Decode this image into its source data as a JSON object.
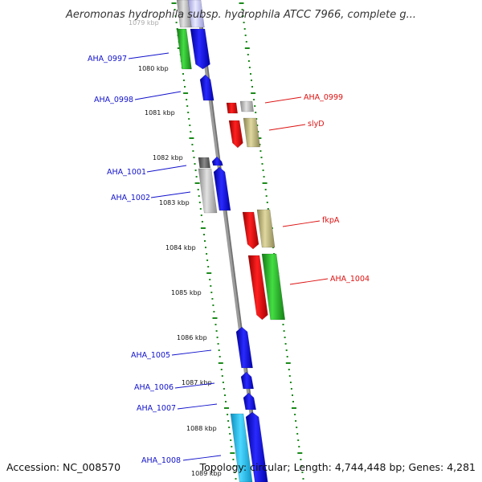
{
  "title": "Aeromonas hydrophila subsp. hydrophila ATCC 7966, complete g...",
  "footer": {
    "accession": "Accession: NC_008570",
    "topology": "Topology: circular; Length: 4,744,448 bp; Genes: 4,281"
  },
  "colors": {
    "forward_label": "#1111cc",
    "reverse_label": "#dd1111",
    "tick_dots": "#1a8a1a",
    "backbone": "#999999"
  },
  "position_labels": [
    "1079 kbp",
    "1080 kbp",
    "1081 kbp",
    "1082 kbp",
    "1083 kbp",
    "1084 kbp",
    "1085 kbp",
    "1086 kbp",
    "1087 kbp",
    "1088 kbp",
    "1089 kbp"
  ],
  "genes_forward": [
    {
      "name": "AHA_0997",
      "color": "#1010dd"
    },
    {
      "name": "AHA_0998",
      "color": "#1010dd"
    },
    {
      "name": "AHA_1001",
      "color": "#1010dd"
    },
    {
      "name": "AHA_1002",
      "color": "#1010dd"
    },
    {
      "name": "AHA_1005",
      "color": "#1010dd"
    },
    {
      "name": "AHA_1006",
      "color": "#1010dd"
    },
    {
      "name": "AHA_1007",
      "color": "#1010dd"
    },
    {
      "name": "AHA_1008",
      "color": "#1010dd"
    }
  ],
  "genes_reverse": [
    {
      "name": "AHA_0999",
      "color": "#ee1111"
    },
    {
      "name": "slyD",
      "color": "#ee1111"
    },
    {
      "name": "fkpA",
      "color": "#ee1111"
    },
    {
      "name": "AHA_1004",
      "color": "#ee1111"
    }
  ]
}
